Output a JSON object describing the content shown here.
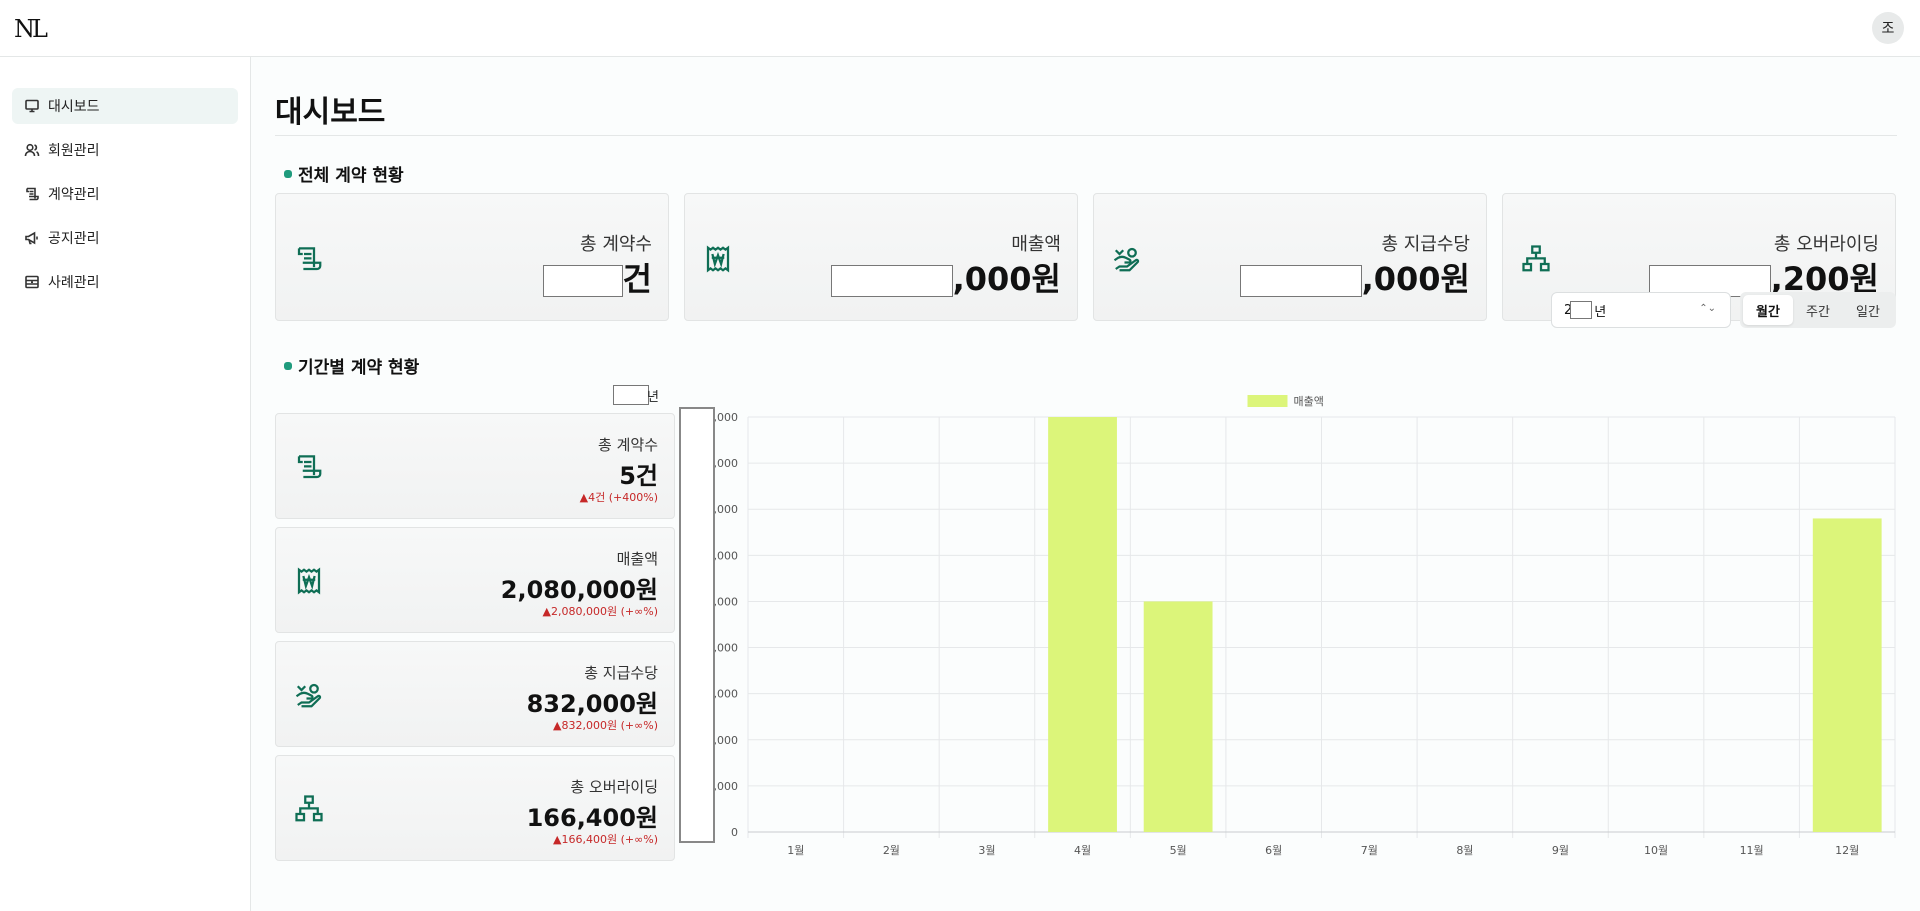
{
  "app": {
    "logo": "NL",
    "avatar": "조"
  },
  "sidebar": {
    "items": [
      {
        "label": "대시보드",
        "icon": "monitor-icon",
        "active": true
      },
      {
        "label": "회원관리",
        "icon": "users-icon"
      },
      {
        "label": "계약관리",
        "icon": "scroll-icon"
      },
      {
        "label": "공지관리",
        "icon": "megaphone-icon"
      },
      {
        "label": "사례관리",
        "icon": "archive-icon"
      }
    ]
  },
  "page": {
    "title": "대시보드"
  },
  "overview": {
    "title": "전체 계약 현황",
    "cards": [
      {
        "label": "총 계약수",
        "value_suffix": "건",
        "icon": "scroll-icon"
      },
      {
        "label": "매출액",
        "value_suffix": ",000원",
        "icon": "receipt-won-icon"
      },
      {
        "label": "총 지급수당",
        "value_suffix": ",000원",
        "icon": "hand-coin-icon"
      },
      {
        "label": "총 오버라이딩",
        "value_suffix": ",200원",
        "icon": "hierarchy-icon"
      }
    ]
  },
  "period": {
    "title": "기간별 계약 현황",
    "year_select": {
      "visible_prefix": "2",
      "suffix": "년"
    },
    "year_label_suffix": "년",
    "tabs": [
      "월간",
      "주간",
      "일간"
    ],
    "active_tab": "월간",
    "cards": [
      {
        "label": "총 계약수",
        "value": "5건",
        "delta": "▲4건 (+400%)",
        "icon": "scroll-icon"
      },
      {
        "label": "매출액",
        "value": "2,080,000원",
        "delta": "▲2,080,000원 (+∞%)",
        "icon": "receipt-won-icon"
      },
      {
        "label": "총 지급수당",
        "value": "832,000원",
        "delta": "▲832,000원 (+∞%)",
        "icon": "hand-coin-icon"
      },
      {
        "label": "총 오버라이딩",
        "value": "166,400원",
        "delta": "▲166,400원 (+∞%)",
        "icon": "hierarchy-icon"
      }
    ]
  },
  "chart_data": {
    "type": "bar",
    "categories": [
      "1월",
      "2월",
      "3월",
      "4월",
      "5월",
      "6월",
      "7월",
      "8월",
      "9월",
      "10월",
      "11월",
      "12월"
    ],
    "series": [
      {
        "name": "매출액",
        "values": [
          0,
          0,
          0,
          900,
          500,
          0,
          0,
          0,
          0,
          0,
          0,
          680
        ],
        "color": "#dcf57a"
      }
    ],
    "ylim": [
      0,
      900
    ],
    "y_tick_labels": [
      ",000",
      ",000",
      ",000",
      ",000",
      ",000",
      ",000",
      ",000",
      ",000",
      ",000",
      "0"
    ],
    "legend_position": "top-center",
    "grid": true
  }
}
